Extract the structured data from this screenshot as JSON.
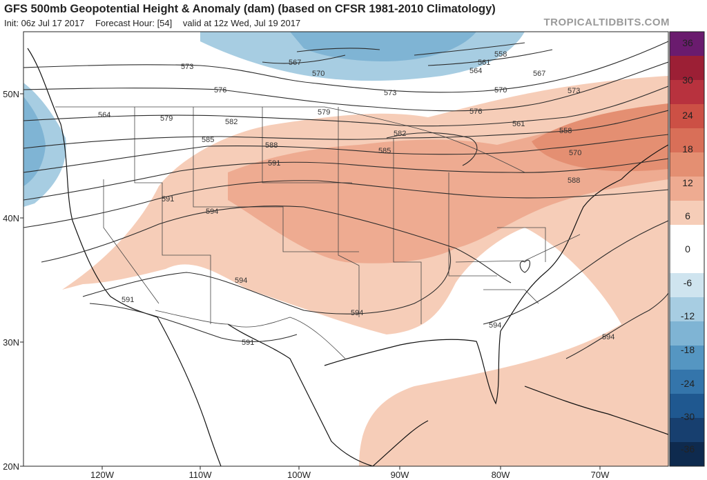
{
  "header": {
    "title": "GFS 500mb Geopotential Height & Anomaly (dam) (based on CFSR 1981-2010 Climatology)",
    "init": "Init: 06z Jul 17 2017",
    "forecast_hour": "Forecast Hour: [54]",
    "valid": "valid at 12z Wed, Jul 19 2017",
    "brand": "TROPICALTIDBITS.COM"
  },
  "axes": {
    "longitude_labels": [
      "120W",
      "110W",
      "100W",
      "90W",
      "80W",
      "70W"
    ],
    "latitude_labels": [
      "50N",
      "40N",
      "30N",
      "20N"
    ]
  },
  "colorbar": {
    "labels": [
      "36",
      "30",
      "24",
      "18",
      "12",
      "6",
      "0",
      "-6",
      "-12",
      "-18",
      "-24",
      "-30",
      "-36"
    ],
    "colors": [
      "#6a1b6e",
      "#9c1f35",
      "#b8323e",
      "#cc5045",
      "#d96f58",
      "#e48f72",
      "#eeab91",
      "#f6cdb8",
      "#ffffff",
      "#ffffff",
      "#cfe4ef",
      "#a7cde2",
      "#7fb4d4",
      "#5596c2",
      "#3475ab",
      "#1f5890",
      "#173f6f",
      "#0e2a4e"
    ]
  },
  "contours": {
    "labels": [
      "573",
      "576",
      "579",
      "582",
      "585",
      "588",
      "591",
      "594",
      "567",
      "570",
      "564",
      "561",
      "558",
      "573",
      "576",
      "579",
      "582",
      "585",
      "588",
      "591",
      "594",
      "594",
      "594",
      "591",
      "594",
      "591",
      "570",
      "573",
      "567",
      "564",
      "561",
      "558",
      "570",
      "573",
      "576",
      "579",
      "582",
      "585",
      "588"
    ]
  }
}
